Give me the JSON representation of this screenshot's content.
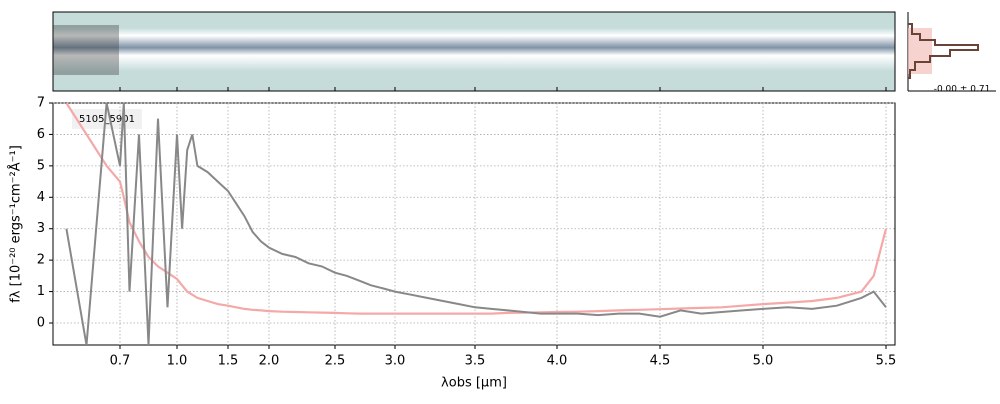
{
  "chart_data": {
    "type": "line",
    "label": "5105_5901",
    "xlabel": "λobs [μm]",
    "ylabel": "fλ [10⁻²⁰ ergs⁻¹cm⁻²Å⁻¹]",
    "annotation": "-0.00 ± 0.71",
    "x": [
      0.62,
      0.65,
      0.68,
      0.7,
      0.72,
      0.75,
      0.8,
      0.85,
      0.9,
      0.95,
      1.0,
      1.05,
      1.1,
      1.15,
      1.2,
      1.3,
      1.4,
      1.5,
      1.6,
      1.7,
      1.8,
      1.9,
      2.0,
      2.1,
      2.2,
      2.3,
      2.4,
      2.5,
      2.6,
      2.7,
      2.8,
      2.9,
      3.0,
      3.1,
      3.2,
      3.3,
      3.4,
      3.5,
      3.6,
      3.7,
      3.8,
      3.9,
      4.0,
      4.1,
      4.2,
      4.3,
      4.4,
      4.5,
      4.6,
      4.7,
      4.8,
      4.9,
      5.0,
      5.1,
      5.2,
      5.3,
      5.4,
      5.45,
      5.5
    ],
    "series": [
      {
        "name": "flux",
        "color": "#888888",
        "values": [
          3,
          -0.7,
          7,
          5,
          7,
          1,
          6,
          -0.7,
          6.5,
          0.5,
          6,
          3,
          5.5,
          6,
          5,
          4.8,
          4.5,
          4.2,
          3.8,
          3.4,
          2.9,
          2.6,
          2.4,
          2.2,
          2.1,
          1.9,
          1.8,
          1.6,
          1.5,
          1.35,
          1.2,
          1.1,
          1.0,
          0.9,
          0.8,
          0.7,
          0.6,
          0.5,
          0.45,
          0.4,
          0.35,
          0.3,
          0.3,
          0.3,
          0.25,
          0.3,
          0.3,
          0.2,
          0.4,
          0.3,
          0.35,
          0.4,
          0.45,
          0.5,
          0.45,
          0.55,
          0.8,
          1.0,
          0.5
        ]
      },
      {
        "name": "error",
        "color": "#f4a9a8",
        "values": [
          7,
          6,
          5,
          4.5,
          4,
          3.2,
          2.6,
          2.1,
          1.8,
          1.6,
          1.4,
          1.2,
          1.0,
          0.9,
          0.8,
          0.7,
          0.6,
          0.55,
          0.5,
          0.45,
          0.42,
          0.4,
          0.38,
          0.36,
          0.35,
          0.34,
          0.33,
          0.32,
          0.31,
          0.3,
          0.3,
          0.3,
          0.3,
          0.3,
          0.3,
          0.3,
          0.3,
          0.3,
          0.3,
          0.32,
          0.33,
          0.34,
          0.35,
          0.36,
          0.38,
          0.4,
          0.42,
          0.44,
          0.46,
          0.48,
          0.5,
          0.55,
          0.6,
          0.65,
          0.7,
          0.8,
          1.0,
          1.5,
          3.0
        ]
      }
    ],
    "xlim": [
      0.6,
      5.52
    ],
    "xticks": [
      0.7,
      {
        "value": 1.0,
        "label": "1.0"
      },
      1.5,
      {
        "value": 2.0,
        "label": "2.0"
      },
      2.5,
      {
        "value": 3.0,
        "label": "3.0"
      },
      3.5,
      {
        "value": 4.0,
        "label": "4.0"
      },
      4.5,
      {
        "value": 5.0,
        "label": "5.0"
      },
      5.5
    ],
    "ylim": [
      -0.7,
      7
    ],
    "yticks": [
      0,
      1,
      2,
      3,
      4,
      5,
      6,
      7
    ],
    "grid": true
  }
}
